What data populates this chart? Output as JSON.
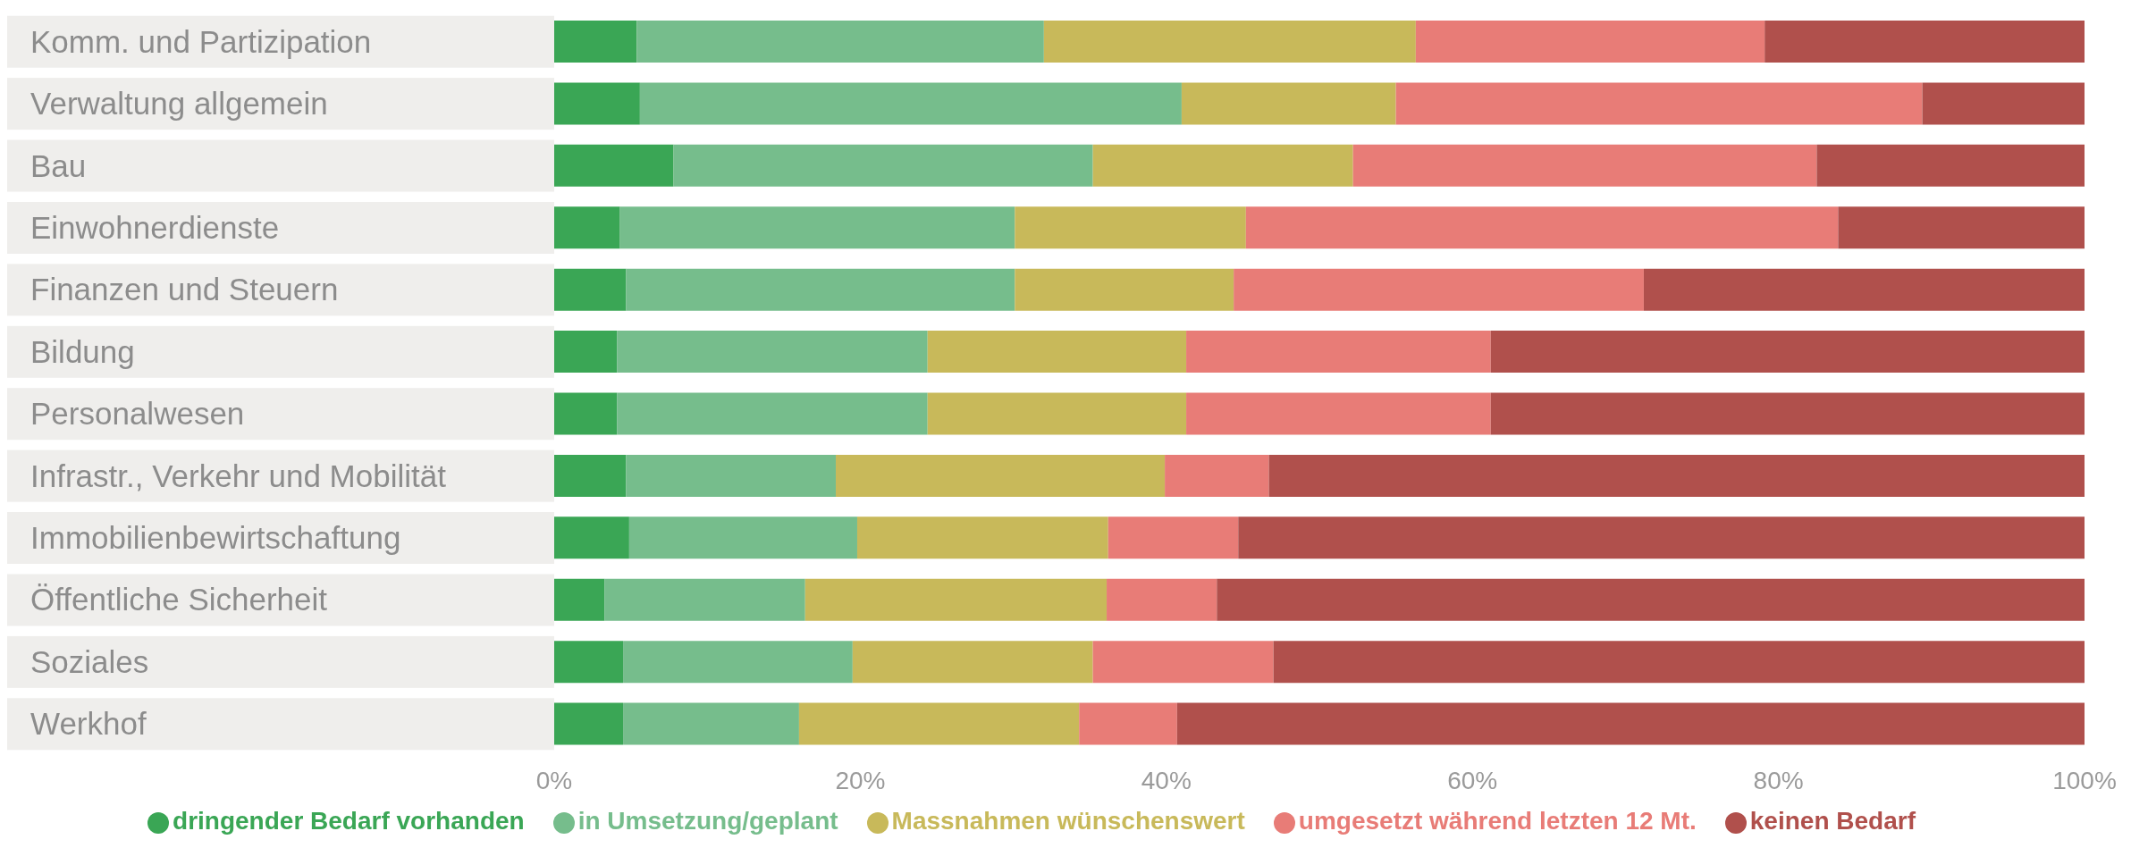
{
  "chart_data": {
    "type": "bar",
    "orientation": "horizontal",
    "stacked": true,
    "categories": [
      "Komm. und Partizipation",
      "Verwaltung allgemein",
      "Bau",
      "Einwohnerdienste",
      "Finanzen und Steuern",
      "Bildung",
      "Personalwesen",
      "Infrastr., Verkehr und Mobilität",
      "Immobilienbewirtschaftung",
      "Öffentliche Sicherheit",
      "Soziales",
      "Werkhof"
    ],
    "series": [
      {
        "name": "dringender Bedarf vorhanden",
        "color": "#3aa655",
        "values": [
          5.4,
          5.6,
          7.8,
          4.3,
          4.7,
          4.1,
          4.1,
          4.7,
          4.9,
          3.3,
          4.5,
          4.5
        ]
      },
      {
        "name": "in Umsetzung/geplant",
        "color": "#76bd8c",
        "values": [
          26.6,
          35.4,
          27.4,
          25.8,
          25.4,
          20.3,
          20.3,
          13.7,
          14.9,
          13.1,
          15.0,
          11.5
        ]
      },
      {
        "name": "Massnahmen wünschenswert",
        "color": "#c8b95a",
        "values": [
          24.3,
          14.0,
          17.0,
          15.1,
          14.3,
          16.9,
          16.9,
          21.5,
          16.4,
          19.7,
          15.7,
          18.3
        ]
      },
      {
        "name": "umgesetzt während letzten 12 Mt.",
        "color": "#e87c77",
        "values": [
          22.8,
          34.4,
          30.3,
          38.7,
          26.8,
          19.9,
          19.9,
          6.8,
          8.5,
          7.2,
          11.8,
          6.4
        ]
      },
      {
        "name": "keinen Bedarf",
        "color": "#b0504c",
        "values": [
          20.9,
          10.6,
          17.5,
          16.1,
          28.8,
          38.8,
          38.8,
          53.3,
          55.3,
          56.7,
          53.0,
          59.3
        ]
      }
    ],
    "xlim": [
      0,
      100
    ],
    "xticks": [
      {
        "value": 0,
        "label": "0%"
      },
      {
        "value": 20,
        "label": "20%"
      },
      {
        "value": 40,
        "label": "40%"
      },
      {
        "value": 60,
        "label": "60%"
      },
      {
        "value": 80,
        "label": "80%"
      },
      {
        "value": 100,
        "label": "100%"
      }
    ],
    "legend": "bottom",
    "grid": false
  }
}
